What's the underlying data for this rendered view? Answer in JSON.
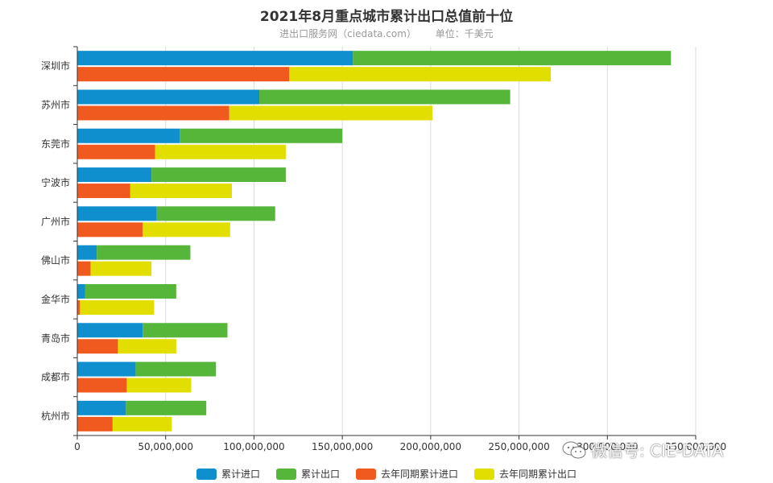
{
  "title": "2021年8月重点城市累计出口总值前十位",
  "subtitle": {
    "source": "进出口服务网（ciedata.com）",
    "unit": "单位：千美元"
  },
  "watermark": "微信号: CIE-DATA",
  "chart_data": {
    "type": "bar",
    "orientation": "horizontal",
    "stacked": true,
    "title": "2021年8月重点城市累计出口总值前十位",
    "categories": [
      "深圳市",
      "苏州市",
      "东莞市",
      "宁波市",
      "广州市",
      "佛山市",
      "金华市",
      "青岛市",
      "成都市",
      "杭州市"
    ],
    "xlim": [
      0,
      350000000
    ],
    "xticks": [
      0,
      50000000,
      100000000,
      150000000,
      200000000,
      250000000,
      300000000,
      350000000
    ],
    "xtick_labels": [
      "0",
      "50,000,000",
      "100,000,000",
      "150,000,000",
      "200,000,000",
      "250,000,000",
      "300,000,000",
      "350,000,000"
    ],
    "series": [
      {
        "name": "累计进口",
        "stack": "current",
        "color": "#0f8fce",
        "values": [
          156000000,
          103000000,
          58000000,
          42000000,
          45000000,
          11000000,
          4500000,
          37000000,
          33000000,
          27500000
        ]
      },
      {
        "name": "累计出口",
        "stack": "current",
        "color": "#56b63a",
        "values": [
          180000000,
          142000000,
          92000000,
          76000000,
          67000000,
          53000000,
          51500000,
          48000000,
          45500000,
          45500000
        ]
      },
      {
        "name": "去年同期累计进口",
        "stack": "previous",
        "color": "#f05a1e",
        "values": [
          120000000,
          86000000,
          44000000,
          30000000,
          37000000,
          7500000,
          1500000,
          23000000,
          28000000,
          20000000
        ]
      },
      {
        "name": "去年同期累计出口",
        "stack": "previous",
        "color": "#e1de00",
        "values": [
          148000000,
          115000000,
          74000000,
          57500000,
          49500000,
          34500000,
          42000000,
          33000000,
          36500000,
          33500000
        ]
      }
    ]
  }
}
